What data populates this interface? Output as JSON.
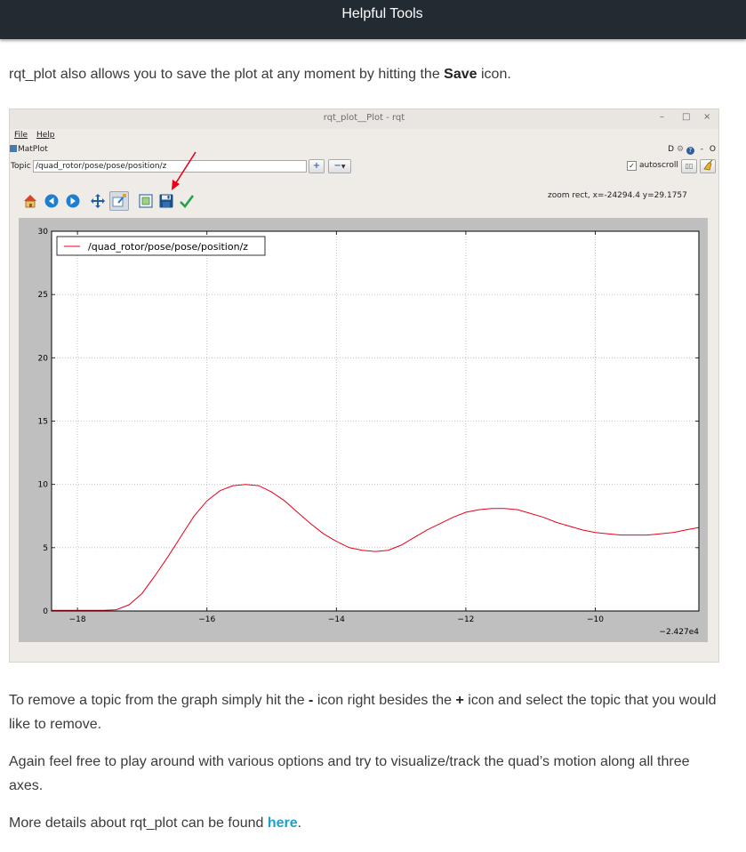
{
  "header": {
    "title": "Helpful Tools"
  },
  "paragraphs": {
    "intro_before": "rqt_plot also allows you to save the plot at any moment by hitting the ",
    "intro_bold": "Save",
    "intro_after": " icon.",
    "remove_1": "To remove a topic from the graph simply hit the ",
    "remove_minus": "-",
    "remove_2": " icon right besides the ",
    "remove_plus": "+",
    "remove_3": " icon and select the topic that you would like to remove.",
    "again": "Again feel free to play around with various options and try to visualize/track the quad’s motion along all three axes.",
    "more_before": "More details about rqt_plot can be found ",
    "more_link": "here",
    "more_after": "."
  },
  "window": {
    "title": "rqt_plot__Plot - rqt",
    "controls": {
      "minimize": "–",
      "maximize": "□",
      "close": "×"
    },
    "menu": {
      "file": "File",
      "help": "Help"
    },
    "plugin_name": "MatPlot",
    "plugin_right": {
      "d_label": "D",
      "help_glyph": "?",
      "minus": "-",
      "o_label": "O"
    },
    "topic_label": "Topic",
    "topic_value": "/quad_rotor/pose/pose/position/z",
    "add_symbol": "+",
    "remove_symbol": "−",
    "autoscroll_check": "✓",
    "autoscroll_label": "autoscroll",
    "coords_readout": "zoom rect, x=-24294.4    y=29.1757",
    "toolbar_icons": [
      "home-icon",
      "back-icon",
      "forward-icon",
      "pan-icon",
      "zoom-icon",
      "subplots-icon",
      "save-icon",
      "edit-curves-icon"
    ]
  },
  "chart_data": {
    "type": "line",
    "title": "",
    "xlabel": "",
    "ylabel": "",
    "offset_label": "−2.427e4",
    "xlim": [
      -18.4,
      -8.4
    ],
    "ylim": [
      0,
      30
    ],
    "xticks": [
      -18,
      -16,
      -14,
      -12,
      -10
    ],
    "xtick_labels": [
      "−18",
      "−16",
      "−14",
      "−12",
      "−10"
    ],
    "yticks": [
      0,
      5,
      10,
      15,
      20,
      25,
      30
    ],
    "ytick_labels": [
      "0",
      "5",
      "10",
      "15",
      "20",
      "25",
      "30"
    ],
    "grid": true,
    "legend_position": "top-left",
    "series": [
      {
        "name": "/quad_rotor/pose/pose/position/z",
        "color": "#e8001b",
        "x": [
          -18.4,
          -18.0,
          -17.6,
          -17.4,
          -17.2,
          -17.0,
          -16.8,
          -16.6,
          -16.4,
          -16.2,
          -16.0,
          -15.8,
          -15.6,
          -15.4,
          -15.2,
          -15.0,
          -14.8,
          -14.6,
          -14.4,
          -14.2,
          -14.0,
          -13.8,
          -13.6,
          -13.4,
          -13.2,
          -13.0,
          -12.8,
          -12.6,
          -12.4,
          -12.2,
          -12.0,
          -11.8,
          -11.6,
          -11.4,
          -11.2,
          -11.0,
          -10.8,
          -10.6,
          -10.4,
          -10.2,
          -10.0,
          -9.8,
          -9.6,
          -9.4,
          -9.2,
          -9.0,
          -8.8,
          -8.6,
          -8.4
        ],
        "y": [
          0.05,
          0.05,
          0.05,
          0.1,
          0.5,
          1.4,
          2.8,
          4.3,
          5.9,
          7.5,
          8.7,
          9.5,
          9.9,
          10.0,
          9.9,
          9.4,
          8.7,
          7.8,
          6.9,
          6.1,
          5.5,
          5.0,
          4.8,
          4.7,
          4.8,
          5.2,
          5.8,
          6.4,
          6.9,
          7.4,
          7.8,
          8.0,
          8.1,
          8.1,
          8.0,
          7.7,
          7.4,
          7.0,
          6.7,
          6.4,
          6.2,
          6.1,
          6.0,
          6.0,
          6.0,
          6.1,
          6.2,
          6.4,
          6.6
        ]
      }
    ]
  }
}
